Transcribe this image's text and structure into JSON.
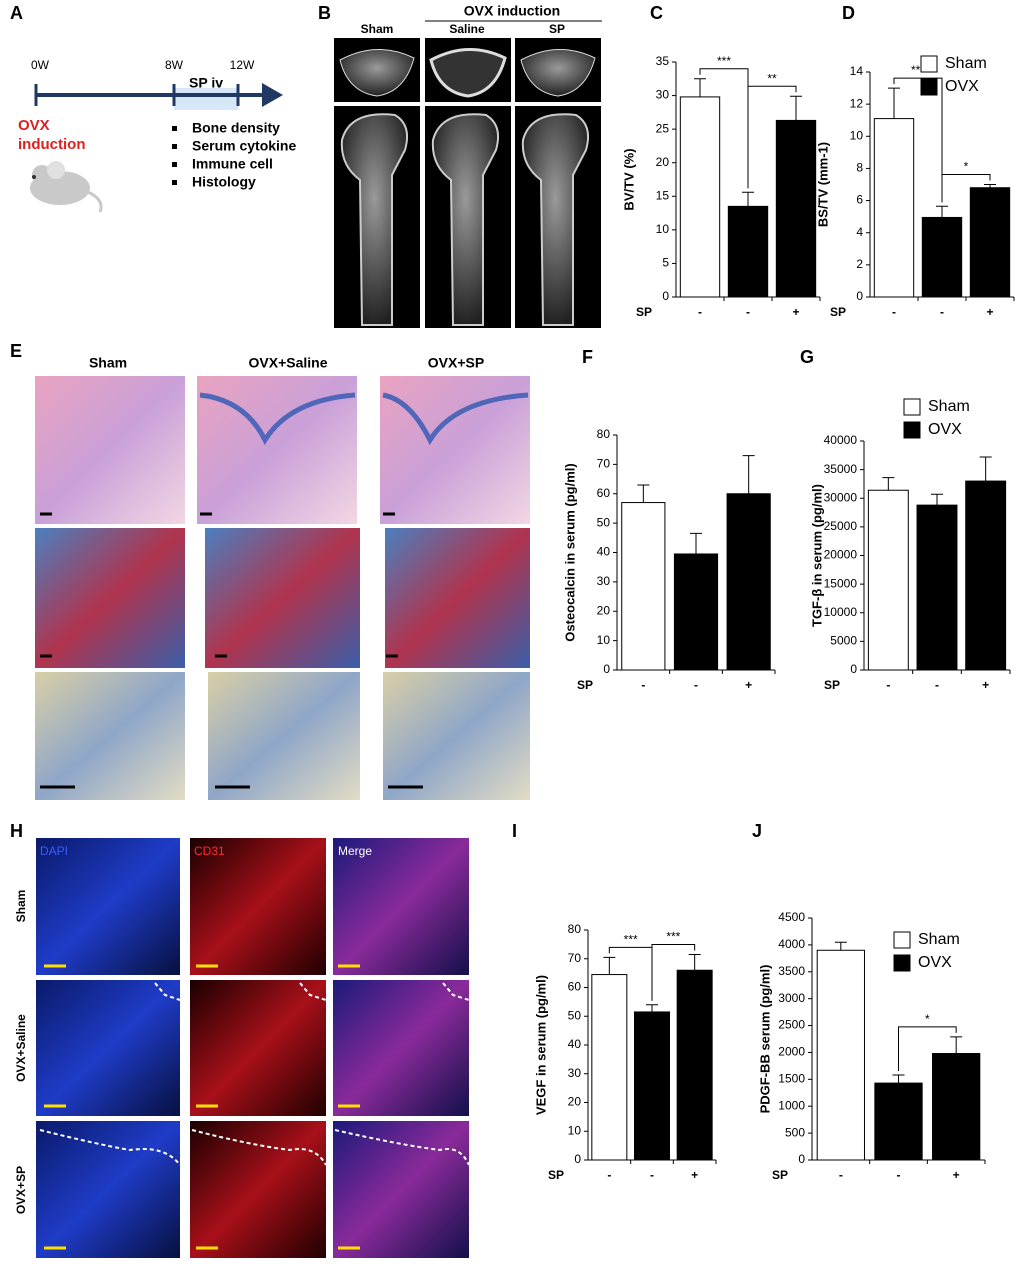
{
  "panel_a": {
    "label": "A",
    "weeks": [
      "0W",
      "8W",
      "12W"
    ],
    "treatment": "SP iv",
    "induction": [
      "OVX",
      "induction"
    ],
    "outcomes": [
      "Bone density",
      "Serum cytokine",
      "Immune cell",
      "Histology"
    ]
  },
  "panel_b": {
    "label": "B",
    "columns": [
      "Sham",
      "Saline",
      "SP"
    ],
    "group": "OVX induction"
  },
  "panel_e": {
    "label": "E",
    "columns": [
      "Sham",
      "OVX+Saline",
      "OVX+SP"
    ]
  },
  "panel_h": {
    "label": "H",
    "columns": [
      "DAPI",
      "CD31",
      "Merge"
    ],
    "rows": [
      "Sham",
      "OVX+Saline",
      "OVX+SP"
    ]
  },
  "chart_data": [
    {
      "type": "bar",
      "panel_label": "C",
      "y_label": "BV/TV (%)",
      "x_label": "SP",
      "categories": [
        "-",
        "-",
        "+"
      ],
      "values": [
        29.8,
        13.5,
        26.3
      ],
      "errors": [
        2.7,
        2.1,
        3.6
      ],
      "colors": [
        "#ffffff",
        "#000000",
        "#000000"
      ],
      "ylim": [
        0,
        35
      ],
      "yticks": [
        0,
        5,
        10,
        15,
        20,
        25,
        30,
        35
      ],
      "annotations": [
        {
          "text": "***",
          "from": 0,
          "to": 1
        },
        {
          "text": "**",
          "from": 1,
          "to": 2
        }
      ]
    },
    {
      "type": "bar",
      "panel_label": "D",
      "y_label": "BS/TV (mm-1)",
      "x_label": "SP",
      "categories": [
        "-",
        "-",
        "+"
      ],
      "values": [
        11.1,
        4.95,
        6.8
      ],
      "errors": [
        1.9,
        0.7,
        0.2
      ],
      "colors": [
        "#ffffff",
        "#000000",
        "#000000"
      ],
      "ylim": [
        0,
        14
      ],
      "yticks": [
        0,
        2,
        4,
        6,
        8,
        10,
        12,
        14
      ],
      "annotations": [
        {
          "text": "***",
          "from": 0,
          "to": 1
        },
        {
          "text": "*",
          "from": 1,
          "to": 2
        }
      ],
      "legend": [
        {
          "name": "Sham",
          "color": "#ffffff"
        },
        {
          "name": "OVX",
          "color": "#000000"
        }
      ]
    },
    {
      "type": "bar",
      "panel_label": "F",
      "y_label": "Osteocalcin in serum (pg/ml)",
      "x_label": "SP",
      "categories": [
        "-",
        "-",
        "+"
      ],
      "values": [
        57,
        39.5,
        60
      ],
      "errors": [
        6,
        7,
        13
      ],
      "colors": [
        "#ffffff",
        "#000000",
        "#000000"
      ],
      "ylim": [
        0,
        80
      ],
      "yticks": [
        0,
        10,
        20,
        30,
        40,
        50,
        60,
        70,
        80
      ]
    },
    {
      "type": "bar",
      "panel_label": "G",
      "y_label": "TGF-β in serum (pg/ml)",
      "x_label": "SP",
      "categories": [
        "-",
        "-",
        "+"
      ],
      "values": [
        31400,
        28800,
        33000
      ],
      "errors": [
        2200,
        1900,
        4200
      ],
      "colors": [
        "#ffffff",
        "#000000",
        "#000000"
      ],
      "ylim": [
        0,
        40000
      ],
      "yticks": [
        0,
        5000,
        10000,
        15000,
        20000,
        25000,
        30000,
        35000,
        40000
      ],
      "legend": [
        {
          "name": "Sham",
          "color": "#ffffff"
        },
        {
          "name": "OVX",
          "color": "#000000"
        }
      ]
    },
    {
      "type": "bar",
      "panel_label": "I",
      "y_label": "VEGF in serum (pg/ml)",
      "x_label": "SP",
      "categories": [
        "-",
        "-",
        "+"
      ],
      "values": [
        64.5,
        51.5,
        66
      ],
      "errors": [
        6,
        2.5,
        5.5
      ],
      "colors": [
        "#ffffff",
        "#000000",
        "#000000"
      ],
      "ylim": [
        0,
        80
      ],
      "yticks": [
        0,
        10,
        20,
        30,
        40,
        50,
        60,
        70,
        80
      ],
      "annotations": [
        {
          "text": "***",
          "from": 0,
          "to": 1
        },
        {
          "text": "***",
          "from": 1,
          "to": 2
        }
      ]
    },
    {
      "type": "bar",
      "panel_label": "J",
      "y_label": "PDGF-BB serum (pg/ml)",
      "x_label": "SP",
      "categories": [
        "-",
        "-",
        "+"
      ],
      "values": [
        3900,
        1430,
        1980
      ],
      "errors": [
        150,
        150,
        310
      ],
      "colors": [
        "#ffffff",
        "#000000",
        "#000000"
      ],
      "ylim": [
        0,
        4500
      ],
      "yticks": [
        0,
        500,
        1000,
        1500,
        2000,
        2500,
        3000,
        3500,
        4000,
        4500
      ],
      "annotations": [
        {
          "text": "*",
          "from": 1,
          "to": 2
        }
      ],
      "legend": [
        {
          "name": "Sham",
          "color": "#ffffff"
        },
        {
          "name": "OVX",
          "color": "#000000"
        }
      ]
    }
  ]
}
